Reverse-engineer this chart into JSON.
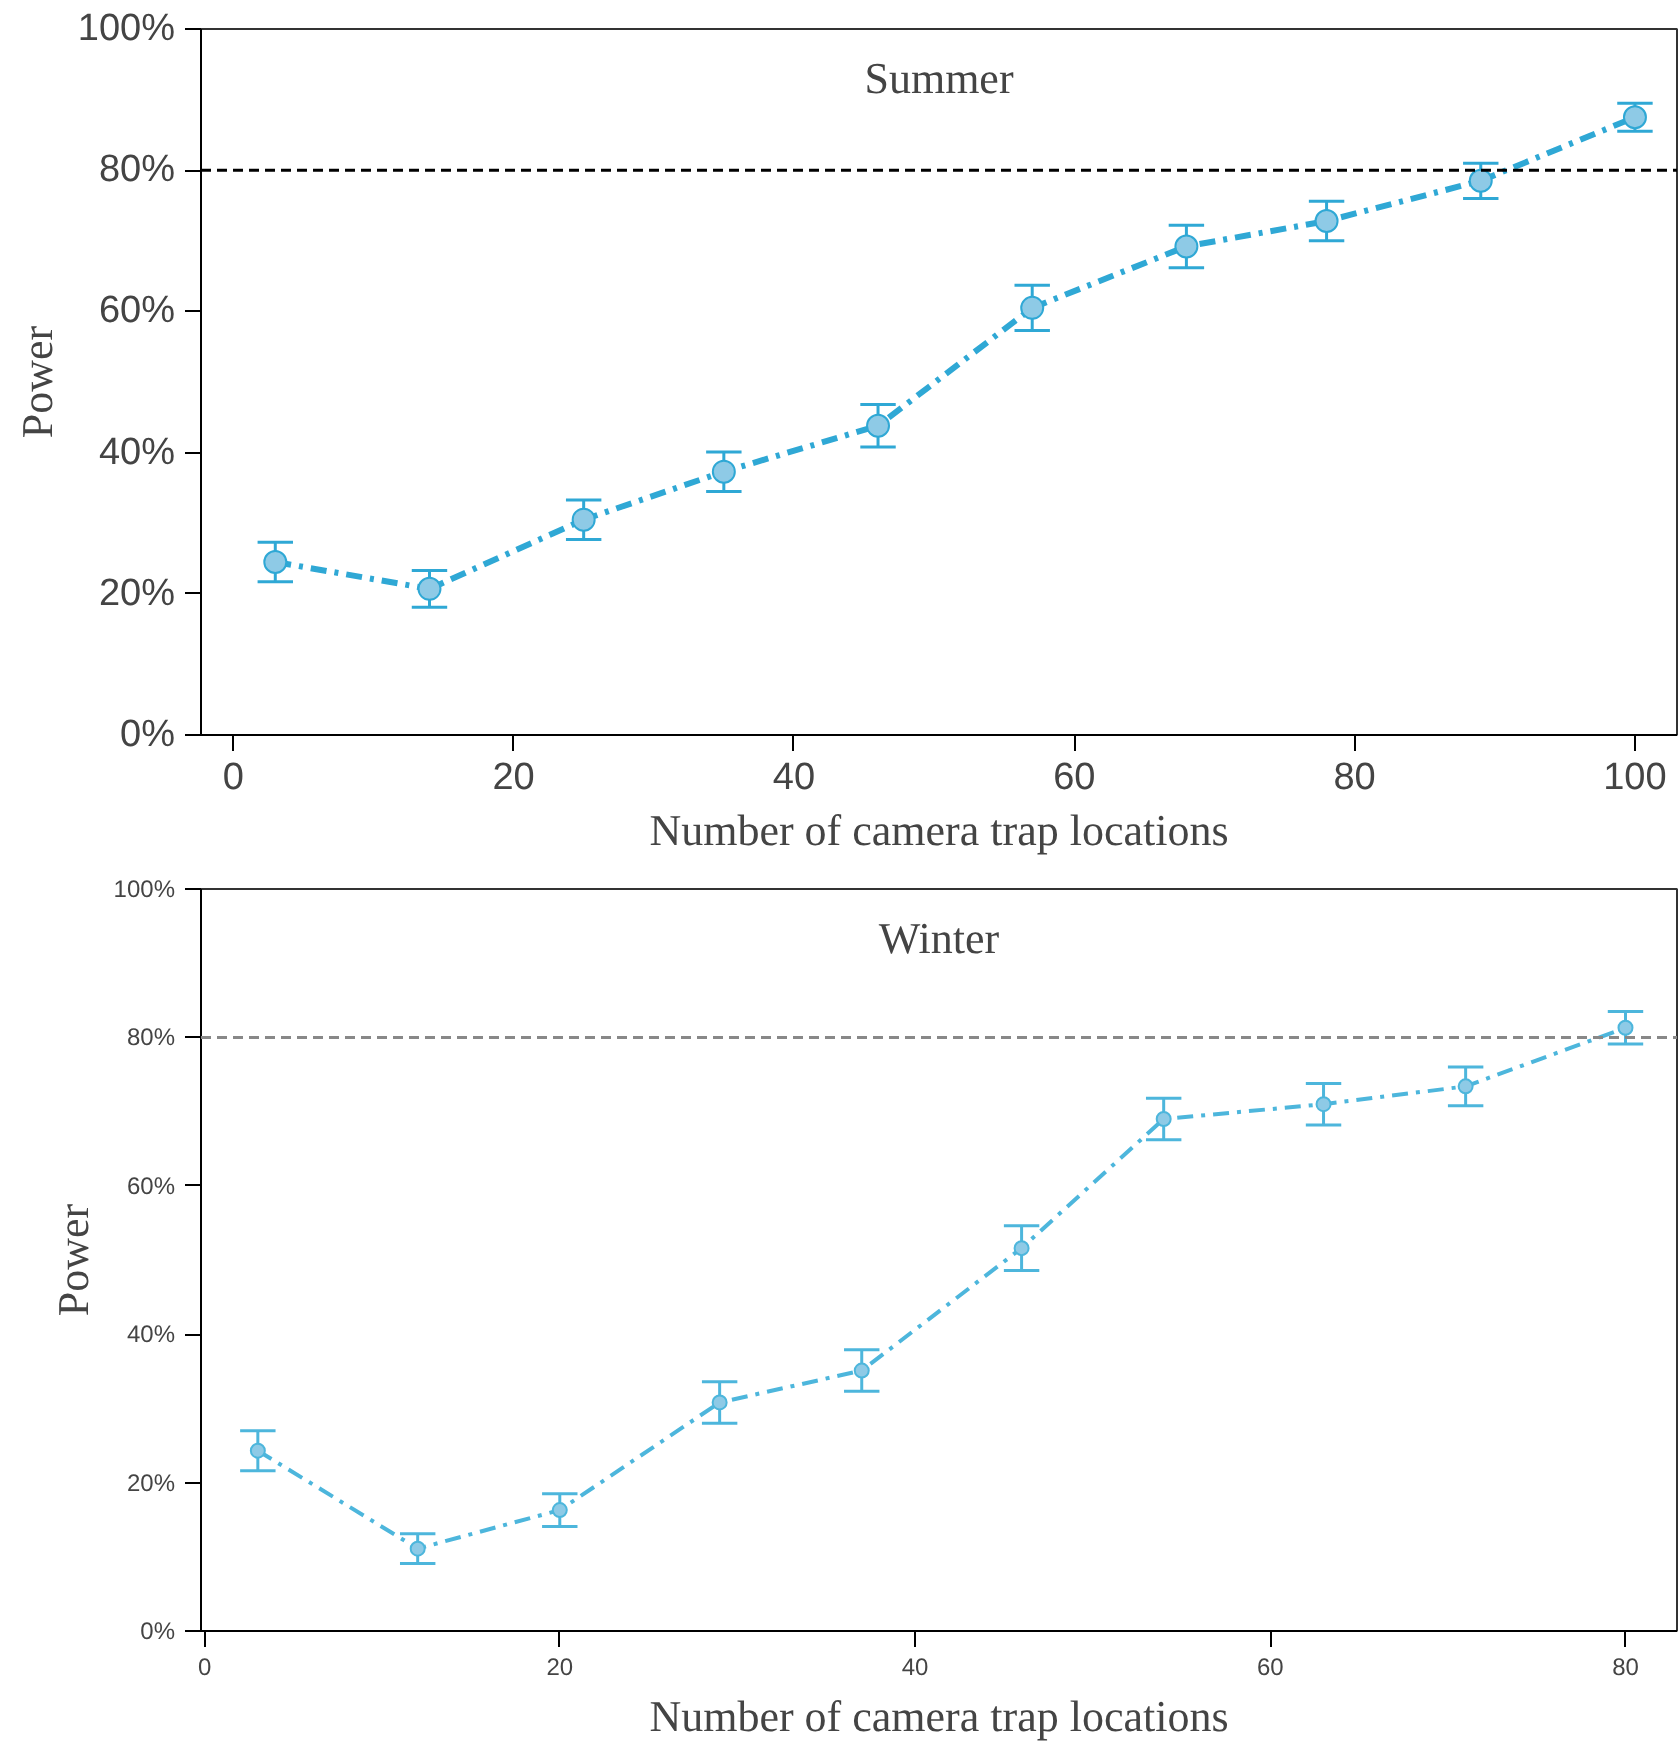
{
  "chart_data": [
    {
      "type": "line",
      "title": "Summer",
      "xlabel": "Number of camera trap locations",
      "ylabel": "Power",
      "x": [
        3,
        14,
        25,
        35,
        46,
        57,
        68,
        78,
        89,
        100
      ],
      "series": [
        {
          "color": "#2fa8d5",
          "values": [
            24.5,
            20.7,
            30.5,
            37.3,
            43.8,
            60.5,
            69.2,
            72.8,
            78.5,
            87.5
          ],
          "errors": [
            2.8,
            2.6,
            2.8,
            2.8,
            3,
            3.2,
            3,
            2.8,
            2.5,
            2
          ]
        }
      ],
      "xlim": [
        -2.3,
        103
      ],
      "xticks": [
        0,
        20,
        40,
        60,
        80,
        100
      ],
      "ylim": [
        0,
        100
      ],
      "yticks": [
        {
          "value": 0,
          "label": "0%"
        },
        {
          "value": 20,
          "label": "20%"
        },
        {
          "value": 40,
          "label": "40%"
        },
        {
          "value": 60,
          "label": "60%"
        },
        {
          "value": 80,
          "label": "80%"
        },
        {
          "value": 100,
          "label": "100%"
        }
      ],
      "ref_lines": [
        {
          "axis": "y",
          "value": 80,
          "color": "#000000",
          "line_style": "dashed"
        }
      ],
      "marker": "circle",
      "line_style": "dashed",
      "grid": false
    },
    {
      "type": "line",
      "title": "Winter",
      "xlabel": "Number of camera trap locations",
      "ylabel": "Power",
      "x": [
        3,
        12,
        20,
        29,
        37,
        46,
        54,
        63,
        71,
        80
      ],
      "series": [
        {
          "color": "#4db6dc",
          "values": [
            24.3,
            11.1,
            16.3,
            30.8,
            35.1,
            51.6,
            69.0,
            71.0,
            73.4,
            81.3
          ],
          "errors": [
            2.7,
            2,
            2.2,
            2.8,
            2.8,
            3,
            2.8,
            2.8,
            2.6,
            2.2
          ]
        }
      ],
      "xlim": [
        -0.2,
        82.9
      ],
      "xticks": [
        0,
        20,
        40,
        60,
        80
      ],
      "ylim": [
        0,
        100
      ],
      "yticks": [
        {
          "value": 0,
          "label": "0%"
        },
        {
          "value": 20,
          "label": "20%"
        },
        {
          "value": 40,
          "label": "40%"
        },
        {
          "value": 60,
          "label": "60%"
        },
        {
          "value": 80,
          "label": "80%"
        },
        {
          "value": 100,
          "label": "100%"
        }
      ],
      "ref_lines": [
        {
          "axis": "y",
          "value": 80,
          "color": "#888888",
          "line_style": "dashed"
        }
      ],
      "marker": "circle",
      "line_style": "dashed",
      "grid": false
    }
  ]
}
